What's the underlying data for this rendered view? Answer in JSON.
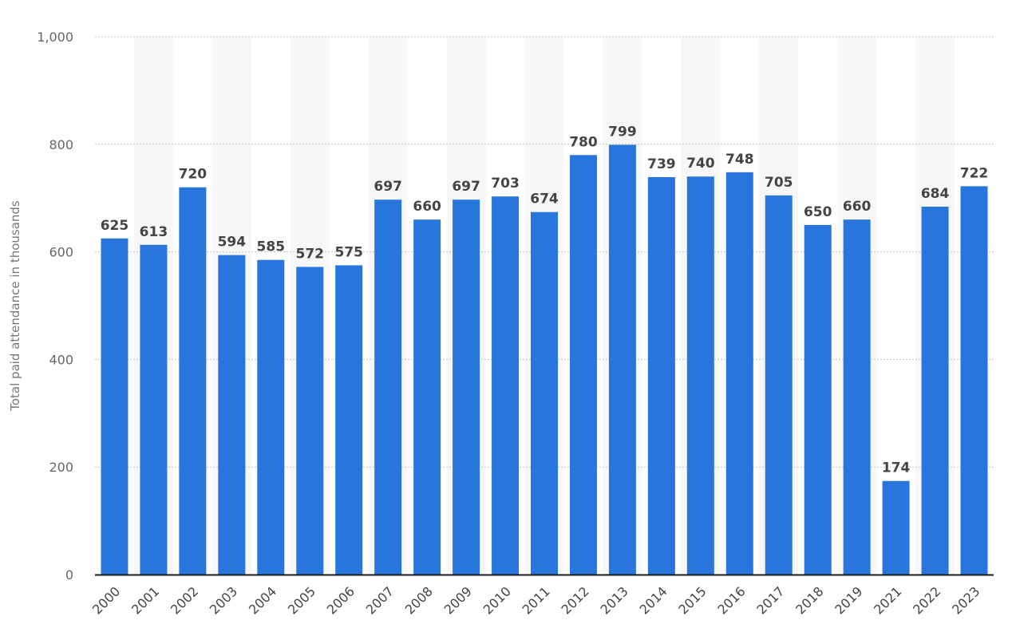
{
  "chart_data": {
    "type": "bar",
    "categories": [
      "2000",
      "2001",
      "2002",
      "2003",
      "2004",
      "2005",
      "2006",
      "2007",
      "2008",
      "2009",
      "2010",
      "2011",
      "2012",
      "2013",
      "2014",
      "2015",
      "2016",
      "2017",
      "2018",
      "2019",
      "2021",
      "2022",
      "2023"
    ],
    "values": [
      625,
      613,
      720,
      594,
      585,
      572,
      575,
      697,
      660,
      697,
      703,
      674,
      780,
      799,
      739,
      740,
      748,
      705,
      650,
      660,
      174,
      684,
      722
    ],
    "ylabel": "Total paid attendance in thousands",
    "xlabel": "",
    "ylim": [
      0,
      1000
    ],
    "yticks": [
      0,
      200,
      400,
      600,
      800,
      1000
    ],
    "ytick_labels": [
      "0",
      "200",
      "400",
      "600",
      "800",
      "1,000"
    ],
    "bar_color": "#2876dd",
    "grid": true,
    "legend": "none"
  }
}
